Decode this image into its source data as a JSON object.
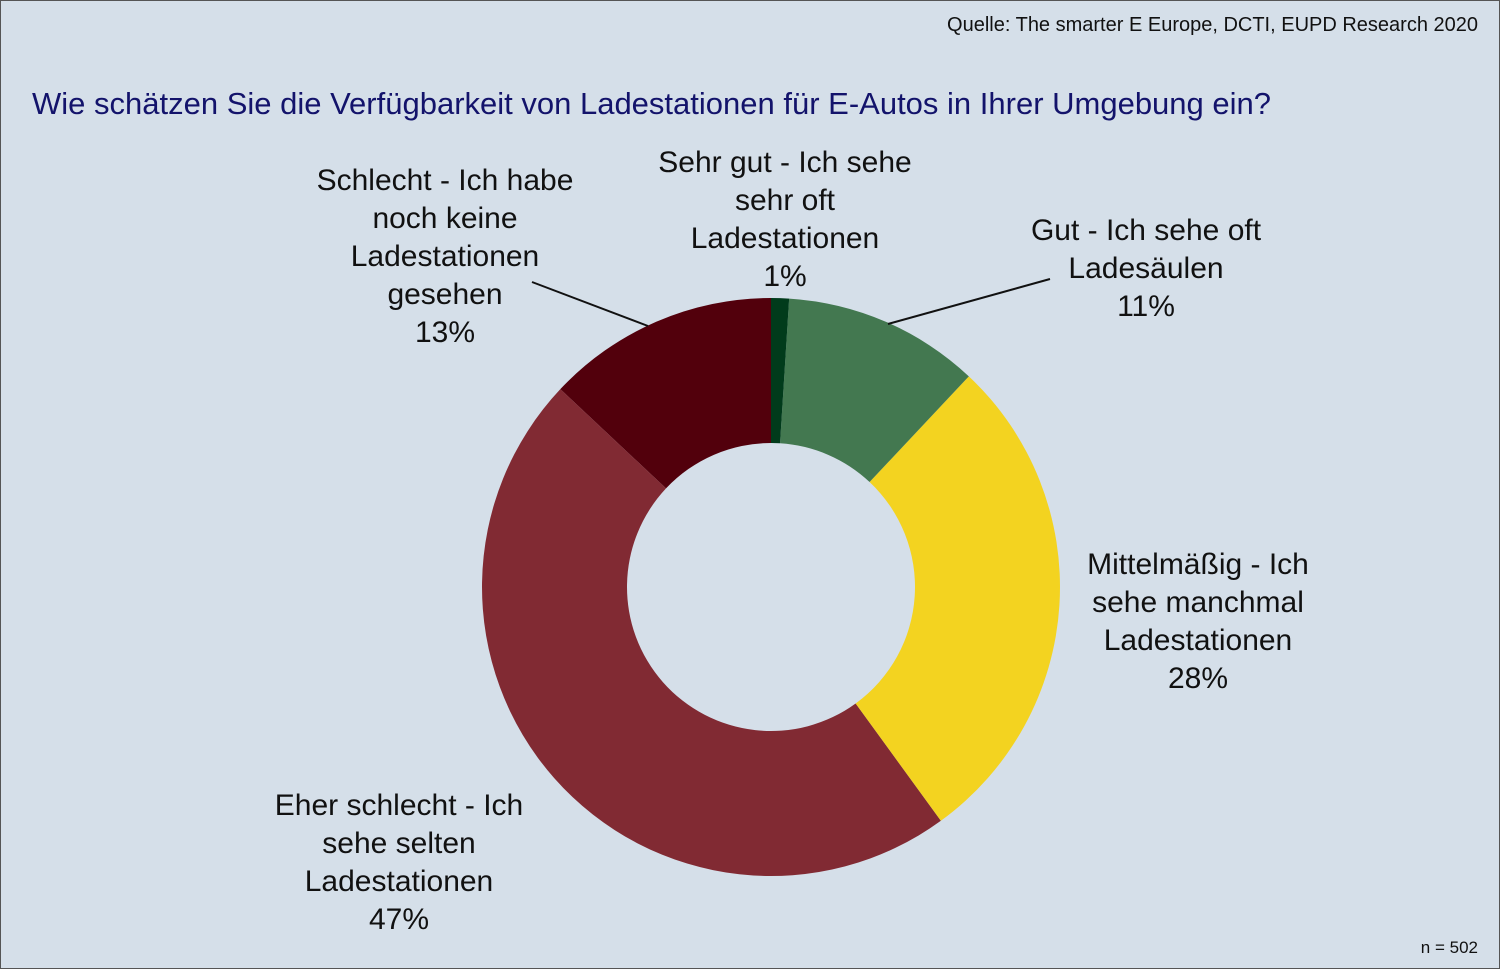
{
  "source": "Quelle: The smarter E Europe, DCTI, EUPD Research 2020",
  "n_label": "n = 502",
  "chart_data": {
    "type": "pie",
    "donut": true,
    "title": "Wie schätzen Sie die Verfügbarkeit von Ladestationen für E-Autos in Ihrer Umgebung ein?",
    "slices": [
      {
        "label": "Sehr gut - Ich sehe sehr oft Ladestationen",
        "lines": [
          "Sehr gut - Ich sehe",
          "sehr oft",
          "Ladestationen"
        ],
        "value": 1,
        "value_label": "1%",
        "color": "#013b1b"
      },
      {
        "label": "Gut - Ich sehe oft Ladesäulen",
        "lines": [
          "Gut - Ich sehe oft",
          "Ladesäulen"
        ],
        "value": 11,
        "value_label": "11%",
        "color": "#437850"
      },
      {
        "label": "Mittelmäßig - Ich sehe manchmal Ladestationen",
        "lines": [
          "Mittelmäßig - Ich",
          "sehe manchmal",
          "Ladestationen"
        ],
        "value": 28,
        "value_label": "28%",
        "color": "#f3d320"
      },
      {
        "label": "Eher schlecht - Ich sehe selten Ladestationen",
        "lines": [
          "Eher schlecht - Ich",
          "sehe selten",
          "Ladestationen"
        ],
        "value": 47,
        "value_label": "47%",
        "color": "#812a33"
      },
      {
        "label": "Schlecht - Ich habe noch keine Ladestationen gesehen",
        "lines": [
          "Schlecht - Ich habe",
          "noch keine",
          "Ladestationen",
          "gesehen"
        ],
        "value": 13,
        "value_label": "13%",
        "color": "#52000c"
      }
    ]
  }
}
